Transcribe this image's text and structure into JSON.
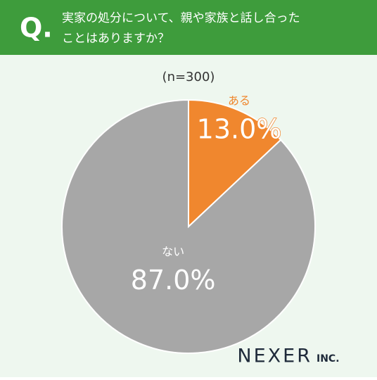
{
  "header": {
    "mark": "Q.",
    "question_lines": [
      "実家の処分について、親や家族と話し合った",
      "ことはありますか？"
    ]
  },
  "chart_data": {
    "type": "pie",
    "subtitle": "(n=300)",
    "categories": [
      "ある",
      "ない"
    ],
    "values": [
      13.0,
      87.0
    ],
    "value_labels": [
      "13.0%",
      "87.0%"
    ],
    "colors": [
      "#f0872e",
      "#a7a7a7"
    ]
  },
  "logo": {
    "name": "NEXER",
    "suffix": "INC."
  }
}
